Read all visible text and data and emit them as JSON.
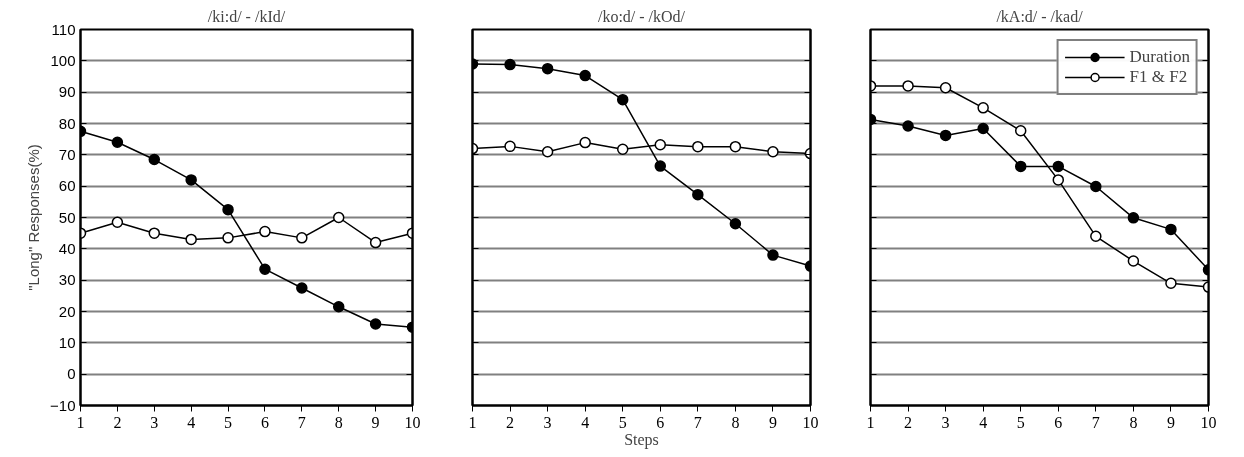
{
  "chart_data": [
    {
      "type": "line",
      "title": "/ki:d/ - /kId/",
      "ylabel": "\"Long\" Responses(%)",
      "x": [
        1,
        2,
        3,
        4,
        5,
        6,
        7,
        8,
        9,
        10
      ],
      "xlim": [
        1,
        10
      ],
      "xticks": [
        1,
        2,
        3,
        4,
        5,
        6,
        7,
        8,
        9,
        10
      ],
      "ylim": [
        -10,
        110
      ],
      "yticks": [
        -10,
        0,
        10,
        20,
        30,
        40,
        50,
        60,
        70,
        80,
        90,
        100,
        110
      ],
      "grid": "y",
      "legend": false,
      "marker": "circle",
      "line_style": "solid",
      "series": [
        {
          "color": "#000000",
          "values": [
            77.5,
            74,
            68.5,
            62,
            52.5,
            33.5,
            27.5,
            21.5,
            16,
            15
          ]
        },
        {
          "color": "#000000",
          "values": [
            45,
            48.5,
            45,
            43,
            43.5,
            45.5,
            43.5,
            50,
            42,
            45
          ]
        }
      ]
    },
    {
      "type": "line",
      "title": "/ko:d/ - /kOd/",
      "xlabel": "Steps",
      "x": [
        1,
        2,
        3,
        4,
        5,
        6,
        7,
        8,
        9,
        10
      ],
      "xlim": [
        1,
        10
      ],
      "xticks": [
        1,
        2,
        3,
        4,
        5,
        6,
        7,
        8,
        9,
        10
      ],
      "ylim": [
        -10,
        110
      ],
      "yticks": [
        -10,
        0,
        10,
        20,
        30,
        40,
        50,
        60,
        70,
        80,
        90,
        100,
        110
      ],
      "tick_labels": "x",
      "grid": "y",
      "legend": false,
      "marker": "circle",
      "line_style": "solid",
      "series": [
        {
          "color": "#000000",
          "values": [
            99,
            98.8,
            97.5,
            95.3,
            87.6,
            66.4,
            57.3,
            48,
            38,
            34.5
          ]
        },
        {
          "color": "#000000",
          "values": [
            72,
            72.7,
            71,
            73.9,
            71.8,
            73.2,
            72.6,
            72.6,
            71,
            70.4
          ]
        }
      ]
    },
    {
      "type": "line",
      "title": "/kA:d/ - /kad/",
      "x": [
        1,
        2,
        3,
        4,
        5,
        6,
        7,
        8,
        9,
        10
      ],
      "xlim": [
        1,
        10
      ],
      "xticks": [
        1,
        2,
        3,
        4,
        5,
        6,
        7,
        8,
        9,
        10
      ],
      "ylim": [
        -10,
        110
      ],
      "yticks": [
        -10,
        0,
        10,
        20,
        30,
        40,
        50,
        60,
        70,
        80,
        90,
        100,
        110
      ],
      "tick_labels": "x",
      "grid": "y",
      "legend": "top right",
      "marker": "circle",
      "line_style": "solid",
      "series": [
        {
          "name": "Duration",
          "color": "#000000",
          "values": [
            81.3,
            79.2,
            76.2,
            78.4,
            66.3,
            66.3,
            59.9,
            49.9,
            46.2,
            33.3
          ]
        },
        {
          "name": "F1 & F2",
          "color": "#000000",
          "values": [
            92,
            92,
            91.4,
            85,
            77.7,
            62,
            44,
            36.1,
            29,
            27.8
          ]
        }
      ]
    }
  ]
}
